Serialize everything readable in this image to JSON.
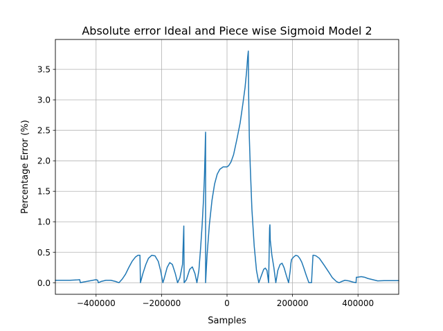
{
  "chart_data": {
    "type": "line",
    "title": "Absolute error Ideal and Piece wise Sigmoid Model 2",
    "xlabel": "Samples",
    "ylabel": "Percentage Error (%)",
    "xlim": [
      -524288,
      524288
    ],
    "ylim": [
      -0.19,
      3.99
    ],
    "grid": true,
    "x_ticks": [
      {
        "value": -400000,
        "label": "−400000"
      },
      {
        "value": -200000,
        "label": "−200000"
      },
      {
        "value": 0,
        "label": "0"
      },
      {
        "value": 200000,
        "label": "200000"
      },
      {
        "value": 400000,
        "label": "400000"
      }
    ],
    "y_ticks": [
      {
        "value": 0.0,
        "label": "0.0"
      },
      {
        "value": 0.5,
        "label": "0.5"
      },
      {
        "value": 1.0,
        "label": "1.0"
      },
      {
        "value": 1.5,
        "label": "1.5"
      },
      {
        "value": 2.0,
        "label": "2.0"
      },
      {
        "value": 2.5,
        "label": "2.5"
      },
      {
        "value": 3.0,
        "label": "3.0"
      },
      {
        "value": 3.5,
        "label": "3.5"
      }
    ],
    "series": [
      {
        "name": "Absolute error",
        "color": "#1f77b4",
        "x": [
          -524288,
          -500000,
          -480000,
          -460000,
          -450000,
          -448000,
          -440000,
          -420000,
          -400000,
          -395000,
          -393000,
          -385000,
          -370000,
          -355000,
          -340000,
          -330000,
          -320000,
          -310000,
          -300000,
          -290000,
          -280000,
          -272000,
          -266000,
          -264500,
          -257000,
          -248000,
          -240000,
          -230000,
          -220000,
          -210000,
          -203000,
          -196000,
          -193000,
          -183000,
          -175000,
          -167000,
          -158000,
          -151000,
          -144000,
          -136000,
          -132000,
          -131000,
          -124000,
          -114000,
          -106000,
          -98000,
          -92000,
          -86000,
          -81000,
          -76000,
          -72000,
          -69000,
          -67000,
          -66000,
          -65500,
          -65500,
          -61000,
          -54000,
          -46000,
          -38000,
          -30000,
          -22000,
          -12000,
          -5000,
          0,
          5000,
          12000,
          20000,
          30000,
          40000,
          48000,
          55000,
          60000,
          63000,
          65000,
          66000,
          68000,
          71000,
          76000,
          83000,
          90000,
          97000,
          105000,
          112000,
          117000,
          122000,
          127000,
          130000,
          131000,
          132000,
          137000,
          143000,
          149000,
          155000,
          162000,
          168000,
          174000,
          181000,
          188000,
          193000,
          195000,
          197000,
          203000,
          210000,
          216000,
          222000,
          228000,
          234000,
          242000,
          250000,
          258000,
          262500,
          263000,
          266000,
          272000,
          282000,
          295000,
          310000,
          322000,
          334000,
          342000,
          350000,
          360000,
          372000,
          385000,
          394000,
          395000,
          398000,
          410000,
          420000,
          430000,
          445000,
          460000,
          480000,
          500000,
          524288
        ],
        "y": [
          0.04,
          0.04,
          0.04,
          0.045,
          0.05,
          0.0,
          0.01,
          0.03,
          0.05,
          0.04,
          0.0,
          0.02,
          0.04,
          0.04,
          0.02,
          0.0,
          0.06,
          0.14,
          0.25,
          0.35,
          0.42,
          0.45,
          0.45,
          0.0,
          0.15,
          0.3,
          0.4,
          0.45,
          0.44,
          0.35,
          0.2,
          0.0,
          0.05,
          0.25,
          0.33,
          0.3,
          0.15,
          0.0,
          0.08,
          0.3,
          0.93,
          0.0,
          0.05,
          0.22,
          0.26,
          0.15,
          0.0,
          0.2,
          0.55,
          0.95,
          1.35,
          1.75,
          2.15,
          2.4,
          2.47,
          0.0,
          0.45,
          0.95,
          1.35,
          1.62,
          1.78,
          1.86,
          1.9,
          1.9,
          1.9,
          1.92,
          1.98,
          2.1,
          2.35,
          2.62,
          2.92,
          3.2,
          3.48,
          3.7,
          3.8,
          3.1,
          2.4,
          1.9,
          1.2,
          0.6,
          0.2,
          0.0,
          0.12,
          0.22,
          0.24,
          0.2,
          0.0,
          0.9,
          0.95,
          0.7,
          0.45,
          0.25,
          0.0,
          0.2,
          0.3,
          0.32,
          0.25,
          0.12,
          0.0,
          0.2,
          0.32,
          0.38,
          0.42,
          0.45,
          0.44,
          0.4,
          0.34,
          0.25,
          0.12,
          0.0,
          0.0,
          0.45,
          0.45,
          0.45,
          0.44,
          0.4,
          0.3,
          0.18,
          0.08,
          0.02,
          0.0,
          0.02,
          0.04,
          0.03,
          0.01,
          0.0,
          0.09,
          0.09,
          0.1,
          0.09,
          0.07,
          0.05,
          0.03,
          0.035,
          0.035,
          0.035
        ]
      }
    ]
  }
}
